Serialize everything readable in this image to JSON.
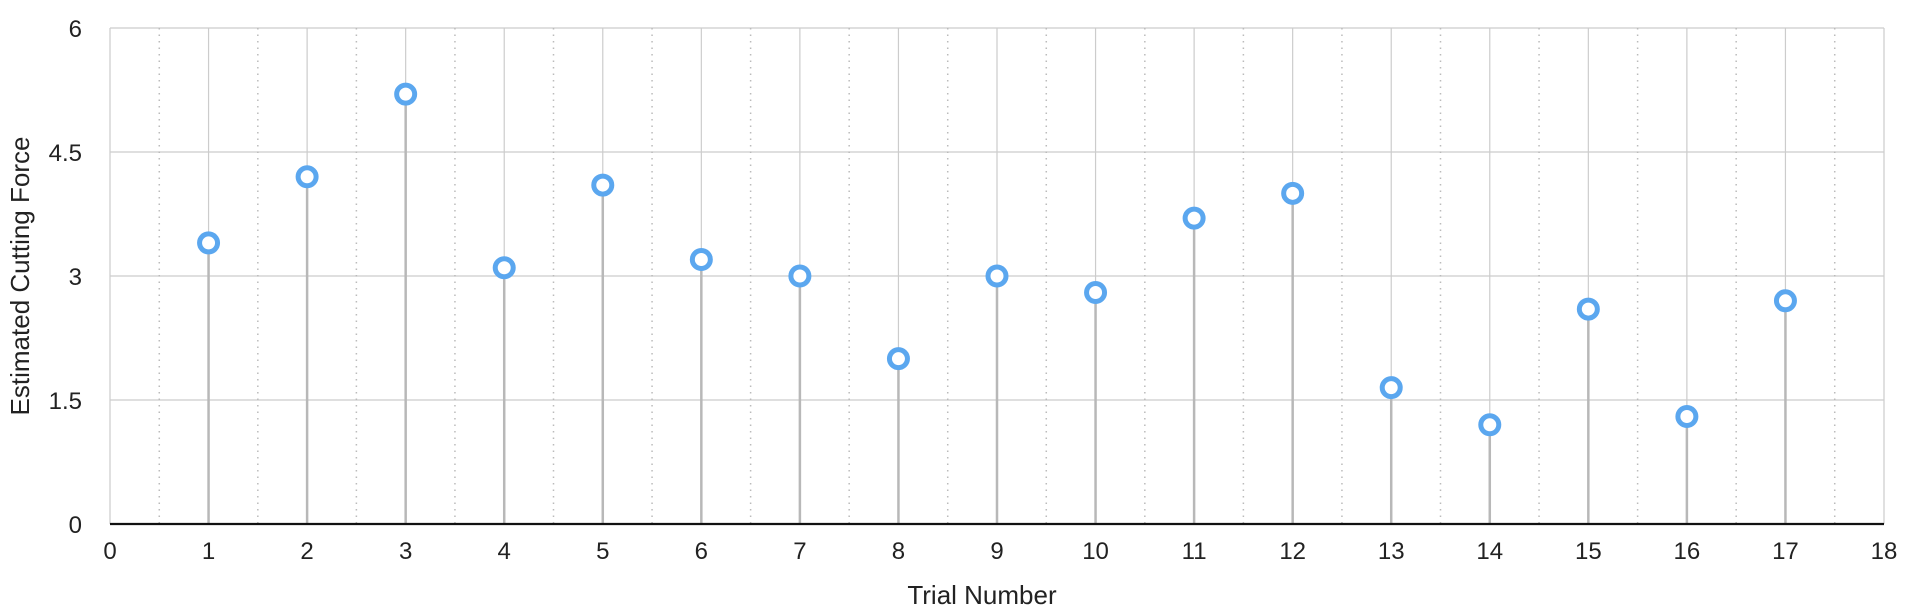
{
  "chart_data": {
    "type": "scatter",
    "title": "",
    "xlabel": "Trial Number",
    "ylabel": "Estimated Cutting Force",
    "xlim": [
      0,
      18
    ],
    "ylim": [
      0,
      6
    ],
    "xticks": [
      0,
      1,
      2,
      3,
      4,
      5,
      6,
      7,
      8,
      9,
      10,
      11,
      12,
      13,
      14,
      15,
      16,
      17,
      18
    ],
    "yticks": [
      0,
      1.5,
      3,
      4.5,
      6
    ],
    "xtick_labels": [
      "0",
      "1",
      "2",
      "3",
      "4",
      "5",
      "6",
      "7",
      "8",
      "9",
      "10",
      "11",
      "12",
      "13",
      "14",
      "15",
      "16",
      "17",
      "18"
    ],
    "ytick_labels": [
      "0",
      "1.5",
      "3",
      "4.5",
      "6"
    ],
    "grid": true,
    "drop_lines": true,
    "marker_color": "#5ba7ef",
    "grid_color": "#cccccc",
    "points": [
      {
        "x": 1,
        "y": 3.4
      },
      {
        "x": 2,
        "y": 4.2
      },
      {
        "x": 3,
        "y": 5.2
      },
      {
        "x": 4,
        "y": 3.1
      },
      {
        "x": 5,
        "y": 4.1
      },
      {
        "x": 6,
        "y": 3.2
      },
      {
        "x": 7,
        "y": 3.0
      },
      {
        "x": 8,
        "y": 2.0
      },
      {
        "x": 9,
        "y": 3.0
      },
      {
        "x": 10,
        "y": 2.8
      },
      {
        "x": 11,
        "y": 3.7
      },
      {
        "x": 12,
        "y": 4.0
      },
      {
        "x": 13,
        "y": 1.65
      },
      {
        "x": 14,
        "y": 1.2
      },
      {
        "x": 15,
        "y": 2.6
      },
      {
        "x": 16,
        "y": 1.3
      },
      {
        "x": 17,
        "y": 2.7
      }
    ]
  }
}
